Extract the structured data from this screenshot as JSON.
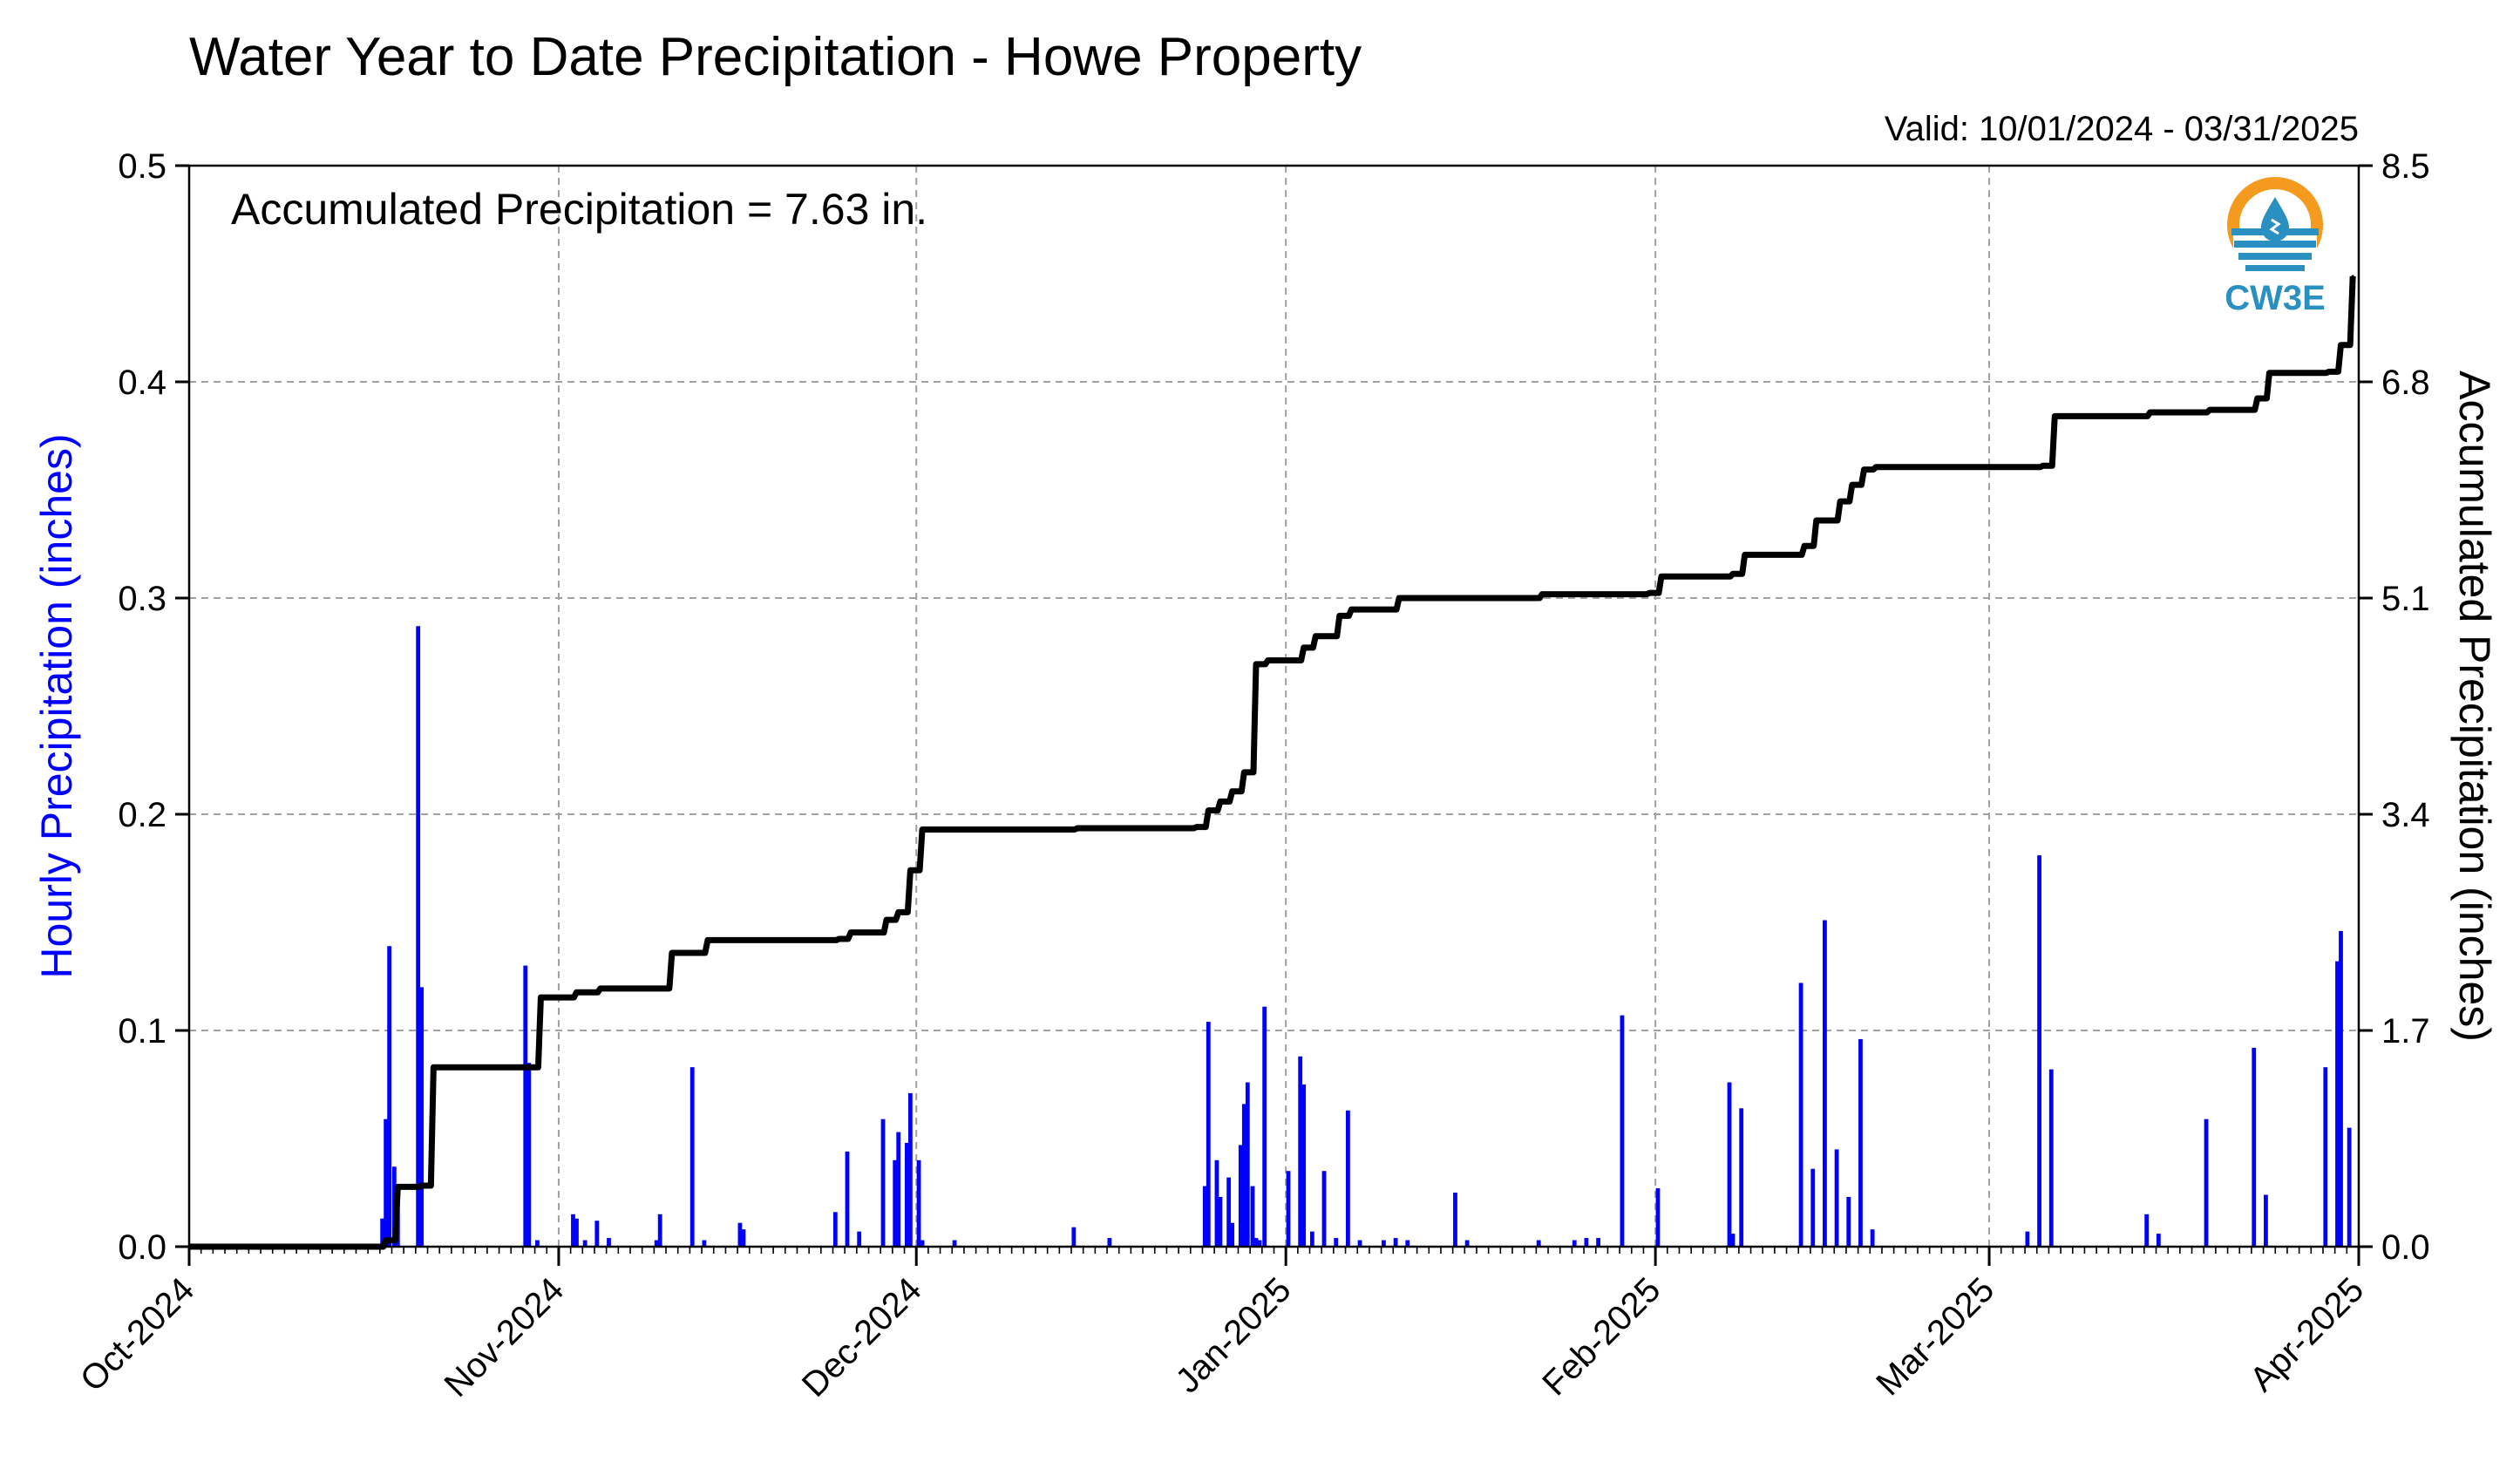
{
  "title": "Water Year to Date Precipitation - Howe Property",
  "valid_text": "Valid: 10/01/2024 - 03/31/2025",
  "annotation": "Accumulated Precipitation = 7.63 in.",
  "logo": {
    "text": "CW3E",
    "color": "#2a8fc1",
    "accent": "#f39a1f"
  },
  "colors": {
    "hourly": "#0000ff",
    "accumulated": "#000000",
    "grid": "#a0a0a0"
  },
  "chart_data": {
    "type": "bar+line",
    "title": "Water Year to Date Precipitation - Howe Property",
    "xlabel": "",
    "ylabel_left": "Hourly Precipitation (inches)",
    "ylabel_right": "Accumulated Precipitation (inches)",
    "xlim": [
      "2024-10-01",
      "2025-04-01"
    ],
    "ylim_left": [
      0,
      0.5
    ],
    "ylim_right": [
      0,
      8.5
    ],
    "grid": true,
    "x_ticks": [
      "Oct-2024",
      "Nov-2024",
      "Dec-2024",
      "Jan-2025",
      "Feb-2025",
      "Mar-2025",
      "Apr-2025"
    ],
    "y_ticks_left": [
      "0.0",
      "0.1",
      "0.2",
      "0.3",
      "0.4",
      "0.5"
    ],
    "y_ticks_right": [
      "0.0",
      "1.7",
      "3.4",
      "5.1",
      "6.8",
      "8.5"
    ],
    "series": [
      {
        "name": "Hourly Precipitation",
        "type": "bar",
        "date": [
          "2024-10-17",
          "2024-10-17",
          "2024-10-17",
          "2024-10-18",
          "2024-10-18",
          "2024-10-20",
          "2024-10-20",
          "2024-10-29",
          "2024-10-29",
          "2024-10-30",
          "2024-11-02",
          "2024-11-02",
          "2024-11-03",
          "2024-11-04",
          "2024-11-05",
          "2024-11-09",
          "2024-11-09",
          "2024-11-12",
          "2024-11-13",
          "2024-11-16",
          "2024-11-16",
          "2024-11-24",
          "2024-11-25",
          "2024-11-26",
          "2024-11-28",
          "2024-11-29",
          "2024-11-29",
          "2024-11-30",
          "2024-11-30",
          "2024-12-01",
          "2024-12-01",
          "2024-12-04",
          "2024-12-14",
          "2024-12-17",
          "2024-12-25",
          "2024-12-25",
          "2024-12-26",
          "2024-12-26",
          "2024-12-27",
          "2024-12-27",
          "2024-12-28",
          "2024-12-28",
          "2024-12-28",
          "2024-12-29",
          "2024-12-29",
          "2024-12-29",
          "2024-12-30",
          "2025-01-01",
          "2025-01-02",
          "2025-01-02",
          "2025-01-03",
          "2025-01-04",
          "2025-01-05",
          "2025-01-06",
          "2025-01-07",
          "2025-01-09",
          "2025-01-10",
          "2025-01-11",
          "2025-01-15",
          "2025-01-16",
          "2025-01-22",
          "2025-01-25",
          "2025-01-26",
          "2025-01-27",
          "2025-01-29",
          "2025-02-01",
          "2025-02-07",
          "2025-02-07",
          "2025-02-08",
          "2025-02-13",
          "2025-02-14",
          "2025-02-15",
          "2025-02-16",
          "2025-02-17",
          "2025-02-18",
          "2025-02-19",
          "2025-03-04",
          "2025-03-05",
          "2025-03-06",
          "2025-03-14",
          "2025-03-15",
          "2025-03-19",
          "2025-03-23",
          "2025-03-24",
          "2025-03-29",
          "2025-03-30",
          "2025-03-30",
          "2025-03-31"
        ],
        "values": [
          0.013,
          0.059,
          0.139,
          0.037,
          0.025,
          0.287,
          0.12,
          0.13,
          0.085,
          0.003,
          0.015,
          0.013,
          0.003,
          0.012,
          0.004,
          0.003,
          0.015,
          0.083,
          0.003,
          0.011,
          0.008,
          0.016,
          0.044,
          0.007,
          0.059,
          0.04,
          0.053,
          0.048,
          0.071,
          0.04,
          0.003,
          0.003,
          0.009,
          0.004,
          0.028,
          0.104,
          0.04,
          0.023,
          0.032,
          0.011,
          0.047,
          0.066,
          0.076,
          0.028,
          0.004,
          0.003,
          0.111,
          0.035,
          0.088,
          0.075,
          0.007,
          0.035,
          0.004,
          0.063,
          0.003,
          0.003,
          0.004,
          0.003,
          0.025,
          0.003,
          0.003,
          0.003,
          0.004,
          0.004,
          0.107,
          0.027,
          0.076,
          0.006,
          0.064,
          0.122,
          0.036,
          0.151,
          0.045,
          0.023,
          0.096,
          0.008,
          0.007,
          0.181,
          0.082,
          0.015,
          0.006,
          0.059,
          0.092,
          0.024,
          0.083,
          0.132,
          0.146,
          0.055
        ],
        "color": "#0000ff"
      },
      {
        "name": "Accumulated Precipitation",
        "type": "line",
        "date": [
          "2024-10-01",
          "2024-10-17",
          "2024-10-18",
          "2024-10-20",
          "2024-10-21",
          "2024-10-29",
          "2024-10-30",
          "2024-11-02",
          "2024-11-04",
          "2024-11-09",
          "2024-11-10",
          "2024-11-13",
          "2024-11-24",
          "2024-11-25",
          "2024-11-28",
          "2024-11-29",
          "2024-11-30",
          "2024-12-01",
          "2024-12-14",
          "2024-12-24",
          "2024-12-25",
          "2024-12-26",
          "2024-12-27",
          "2024-12-28",
          "2024-12-29",
          "2024-12-30",
          "2025-01-02",
          "2025-01-03",
          "2025-01-05",
          "2025-01-06",
          "2025-01-10",
          "2025-01-22",
          "2025-01-31",
          "2025-02-01",
          "2025-02-07",
          "2025-02-08",
          "2025-02-13",
          "2025-02-14",
          "2025-02-16",
          "2025-02-17",
          "2025-02-18",
          "2025-02-19",
          "2025-03-05",
          "2025-03-06",
          "2025-03-14",
          "2025-03-19",
          "2025-03-23",
          "2025-03-24",
          "2025-03-29",
          "2025-03-30",
          "2025-03-31"
        ],
        "values": [
          0.0,
          0.05,
          0.47,
          0.48,
          1.41,
          1.41,
          1.96,
          2.0,
          2.03,
          2.03,
          2.31,
          2.41,
          2.42,
          2.47,
          2.57,
          2.63,
          2.96,
          3.28,
          3.29,
          3.3,
          3.43,
          3.5,
          3.58,
          3.73,
          4.58,
          4.61,
          4.71,
          4.8,
          4.96,
          5.01,
          5.1,
          5.13,
          5.14,
          5.27,
          5.29,
          5.44,
          5.51,
          5.71,
          5.86,
          5.99,
          6.11,
          6.13,
          6.14,
          6.53,
          6.56,
          6.58,
          6.67,
          6.87,
          6.88,
          7.09,
          7.63
        ],
        "color": "#000000"
      }
    ]
  }
}
